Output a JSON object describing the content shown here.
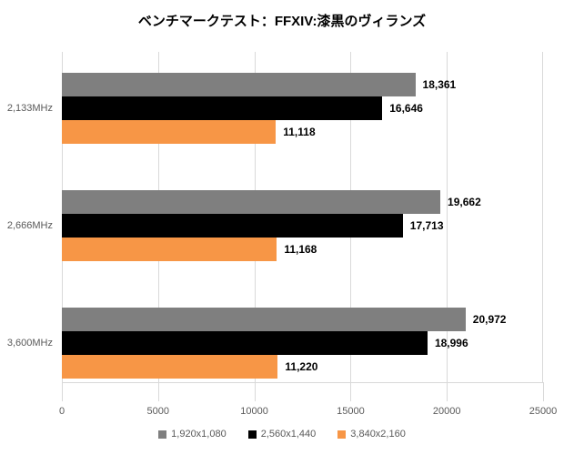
{
  "chart_data": {
    "type": "bar",
    "orientation": "horizontal",
    "title": "ベンチマークテスト：FFXIV:漆黒のヴィランズ",
    "categories": [
      "2,133MHz",
      "2,666MHz",
      "3,600MHz"
    ],
    "series": [
      {
        "name": "1,920x1,080",
        "color": "#7F7F7F",
        "values": [
          18361,
          19662,
          20972
        ],
        "labels": [
          "18,361",
          "19,662",
          "20,972"
        ]
      },
      {
        "name": "2,560x1,440",
        "color": "#000000",
        "values": [
          16646,
          17713,
          18996
        ],
        "labels": [
          "16,646",
          "17,713",
          "18,996"
        ]
      },
      {
        "name": "3,840x2,160",
        "color": "#F79646",
        "values": [
          11118,
          11168,
          11220
        ],
        "labels": [
          "11,118",
          "11,168",
          "11,220"
        ]
      }
    ],
    "xlim": [
      0,
      25000
    ],
    "x_ticks": [
      0,
      5000,
      10000,
      15000,
      20000,
      25000
    ],
    "x_tick_labels": [
      "0",
      "5000",
      "10000",
      "15000",
      "20000",
      "25000"
    ],
    "grid": "vertical",
    "legend_position": "bottom",
    "colors": {
      "gridline": "#D9D9D9",
      "axis_text": "#595959",
      "value_text": "#000000",
      "title_text": "#000000",
      "background": "#FFFFFF"
    }
  }
}
